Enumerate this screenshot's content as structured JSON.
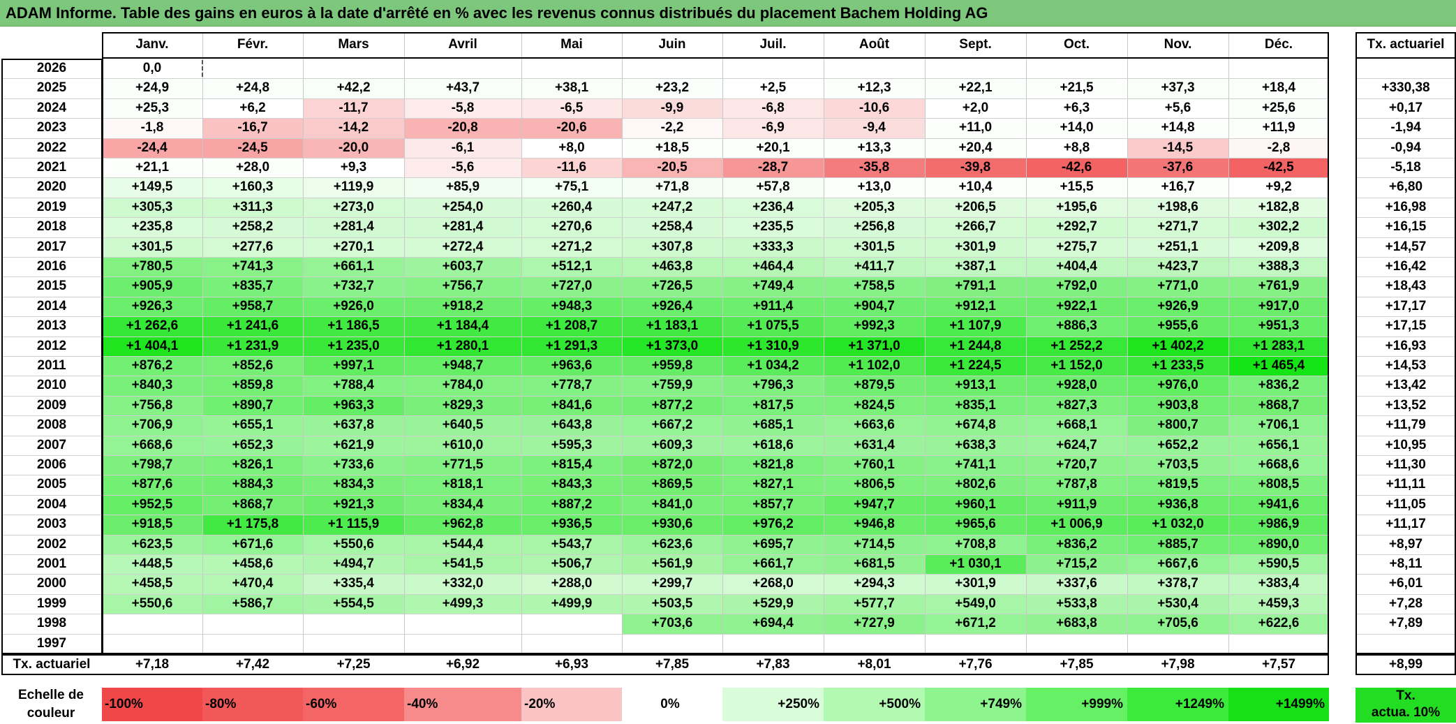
{
  "title": "ADAM Informe. Table des gains en euros à la date d'arrêté en % avec les revenus connus distribués du placement Bachem Holding AG",
  "months": [
    "Janv.",
    "Févr.",
    "Mars",
    "Avril",
    "Mai",
    "Juin",
    "Juil.",
    "Août",
    "Sept.",
    "Oct.",
    "Nov.",
    "Déc."
  ],
  "tx_header": "Tx. actuariel",
  "rows": [
    {
      "year": "2026",
      "values": [
        "0,0",
        "",
        "",
        "",
        "",
        "",
        "",
        "",
        "",
        "",
        "",
        ""
      ],
      "tx": ""
    },
    {
      "year": "2025",
      "values": [
        "+24,9",
        "+24,8",
        "+42,2",
        "+43,7",
        "+38,1",
        "+23,2",
        "+2,5",
        "+12,3",
        "+22,1",
        "+21,5",
        "+37,3",
        "+18,4"
      ],
      "tx": "+330,38"
    },
    {
      "year": "2024",
      "values": [
        "+25,3",
        "+6,2",
        "-11,7",
        "-5,8",
        "-6,5",
        "-9,9",
        "-6,8",
        "-10,6",
        "+2,0",
        "+6,3",
        "+5,6",
        "+25,6"
      ],
      "tx": "+0,17"
    },
    {
      "year": "2023",
      "values": [
        "-1,8",
        "-16,7",
        "-14,2",
        "-20,8",
        "-20,6",
        "-2,2",
        "-6,9",
        "-9,4",
        "+11,0",
        "+14,0",
        "+14,8",
        "+11,9"
      ],
      "tx": "-1,94"
    },
    {
      "year": "2022",
      "values": [
        "-24,4",
        "-24,5",
        "-20,0",
        "-6,1",
        "+8,0",
        "+18,5",
        "+20,1",
        "+13,3",
        "+20,4",
        "+8,8",
        "-14,5",
        "-2,8"
      ],
      "tx": "-0,94"
    },
    {
      "year": "2021",
      "values": [
        "+21,1",
        "+28,0",
        "+9,3",
        "-5,6",
        "-11,6",
        "-20,5",
        "-28,7",
        "-35,8",
        "-39,8",
        "-42,6",
        "-37,6",
        "-42,5"
      ],
      "tx": "-5,18"
    },
    {
      "year": "2020",
      "values": [
        "+149,5",
        "+160,3",
        "+119,9",
        "+85,9",
        "+75,1",
        "+71,8",
        "+57,8",
        "+13,0",
        "+10,4",
        "+15,5",
        "+16,7",
        "+9,2"
      ],
      "tx": "+6,80"
    },
    {
      "year": "2019",
      "values": [
        "+305,3",
        "+311,3",
        "+273,0",
        "+254,0",
        "+260,4",
        "+247,2",
        "+236,4",
        "+205,3",
        "+206,5",
        "+195,6",
        "+198,6",
        "+182,8"
      ],
      "tx": "+16,98"
    },
    {
      "year": "2018",
      "values": [
        "+235,8",
        "+258,2",
        "+281,4",
        "+281,4",
        "+270,6",
        "+258,4",
        "+235,5",
        "+256,8",
        "+266,7",
        "+292,7",
        "+271,7",
        "+302,2"
      ],
      "tx": "+16,15"
    },
    {
      "year": "2017",
      "values": [
        "+301,5",
        "+277,6",
        "+270,1",
        "+272,4",
        "+271,2",
        "+307,8",
        "+333,3",
        "+301,5",
        "+301,9",
        "+275,7",
        "+251,1",
        "+209,8"
      ],
      "tx": "+14,57"
    },
    {
      "year": "2016",
      "values": [
        "+780,5",
        "+741,3",
        "+661,1",
        "+603,7",
        "+512,1",
        "+463,8",
        "+464,4",
        "+411,7",
        "+387,1",
        "+404,4",
        "+423,7",
        "+388,3"
      ],
      "tx": "+16,42"
    },
    {
      "year": "2015",
      "values": [
        "+905,9",
        "+835,7",
        "+732,7",
        "+756,7",
        "+727,0",
        "+726,5",
        "+749,4",
        "+758,5",
        "+791,1",
        "+792,0",
        "+771,0",
        "+761,9"
      ],
      "tx": "+18,43"
    },
    {
      "year": "2014",
      "values": [
        "+926,3",
        "+958,7",
        "+926,0",
        "+918,2",
        "+948,3",
        "+926,4",
        "+911,4",
        "+904,7",
        "+912,1",
        "+922,1",
        "+926,9",
        "+917,0"
      ],
      "tx": "+17,17"
    },
    {
      "year": "2013",
      "values": [
        "+1 262,6",
        "+1 241,6",
        "+1 186,5",
        "+1 184,4",
        "+1 208,7",
        "+1 183,1",
        "+1 075,5",
        "+992,3",
        "+1 107,9",
        "+886,3",
        "+955,6",
        "+951,3"
      ],
      "tx": "+17,15"
    },
    {
      "year": "2012",
      "values": [
        "+1 404,1",
        "+1 231,9",
        "+1 235,0",
        "+1 280,1",
        "+1 291,3",
        "+1 373,0",
        "+1 310,9",
        "+1 371,0",
        "+1 244,8",
        "+1 252,2",
        "+1 402,2",
        "+1 283,1"
      ],
      "tx": "+16,93"
    },
    {
      "year": "2011",
      "values": [
        "+876,2",
        "+852,6",
        "+997,1",
        "+948,7",
        "+963,6",
        "+959,8",
        "+1 034,2",
        "+1 102,0",
        "+1 224,5",
        "+1 152,0",
        "+1 233,5",
        "+1 465,4"
      ],
      "tx": "+14,53"
    },
    {
      "year": "2010",
      "values": [
        "+840,3",
        "+859,8",
        "+788,4",
        "+784,0",
        "+778,7",
        "+759,9",
        "+796,3",
        "+879,5",
        "+913,1",
        "+928,0",
        "+976,0",
        "+836,2"
      ],
      "tx": "+13,42"
    },
    {
      "year": "2009",
      "values": [
        "+756,8",
        "+890,7",
        "+963,3",
        "+829,3",
        "+841,6",
        "+877,2",
        "+817,5",
        "+824,5",
        "+835,1",
        "+827,3",
        "+903,8",
        "+868,7"
      ],
      "tx": "+13,52"
    },
    {
      "year": "2008",
      "values": [
        "+706,9",
        "+655,1",
        "+637,8",
        "+640,5",
        "+643,8",
        "+667,2",
        "+685,1",
        "+663,6",
        "+674,8",
        "+668,1",
        "+800,7",
        "+706,1"
      ],
      "tx": "+11,79"
    },
    {
      "year": "2007",
      "values": [
        "+668,6",
        "+652,3",
        "+621,9",
        "+610,0",
        "+595,3",
        "+609,3",
        "+618,6",
        "+631,4",
        "+638,3",
        "+624,7",
        "+652,2",
        "+656,1"
      ],
      "tx": "+10,95"
    },
    {
      "year": "2006",
      "values": [
        "+798,7",
        "+826,1",
        "+733,6",
        "+771,5",
        "+815,4",
        "+872,0",
        "+821,8",
        "+760,1",
        "+741,1",
        "+720,7",
        "+703,5",
        "+668,6"
      ],
      "tx": "+11,30"
    },
    {
      "year": "2005",
      "values": [
        "+877,6",
        "+884,3",
        "+834,3",
        "+818,1",
        "+843,3",
        "+869,5",
        "+827,1",
        "+806,5",
        "+802,6",
        "+787,8",
        "+819,5",
        "+808,5"
      ],
      "tx": "+11,11"
    },
    {
      "year": "2004",
      "values": [
        "+952,5",
        "+868,7",
        "+921,3",
        "+834,4",
        "+887,2",
        "+841,0",
        "+857,7",
        "+947,7",
        "+960,1",
        "+911,9",
        "+936,8",
        "+941,6"
      ],
      "tx": "+11,05"
    },
    {
      "year": "2003",
      "values": [
        "+918,5",
        "+1 175,8",
        "+1 115,9",
        "+962,8",
        "+936,5",
        "+930,6",
        "+976,2",
        "+946,8",
        "+965,6",
        "+1 006,9",
        "+1 032,0",
        "+986,9"
      ],
      "tx": "+11,17"
    },
    {
      "year": "2002",
      "values": [
        "+623,5",
        "+671,6",
        "+550,6",
        "+544,4",
        "+543,7",
        "+623,6",
        "+695,7",
        "+714,5",
        "+708,8",
        "+836,2",
        "+885,7",
        "+890,0"
      ],
      "tx": "+8,97"
    },
    {
      "year": "2001",
      "values": [
        "+448,5",
        "+458,6",
        "+494,7",
        "+541,5",
        "+506,7",
        "+561,9",
        "+661,7",
        "+681,5",
        "+1 030,1",
        "+715,2",
        "+667,6",
        "+590,5"
      ],
      "tx": "+8,11"
    },
    {
      "year": "2000",
      "values": [
        "+458,5",
        "+470,4",
        "+335,4",
        "+332,0",
        "+288,0",
        "+299,7",
        "+268,0",
        "+294,3",
        "+301,9",
        "+337,6",
        "+378,7",
        "+383,4"
      ],
      "tx": "+6,01"
    },
    {
      "year": "1999",
      "values": [
        "+550,6",
        "+586,7",
        "+554,5",
        "+499,3",
        "+499,9",
        "+503,5",
        "+529,9",
        "+577,7",
        "+549,0",
        "+533,8",
        "+530,4",
        "+459,3"
      ],
      "tx": "+7,28"
    },
    {
      "year": "1998",
      "values": [
        "",
        "",
        "",
        "",
        "",
        "+703,6",
        "+694,4",
        "+727,9",
        "+671,2",
        "+683,8",
        "+705,6",
        "+622,6"
      ],
      "tx": "+7,89"
    },
    {
      "year": "1997",
      "values": [
        "",
        "",
        "",
        "",
        "",
        "",
        "",
        "",
        "",
        "",
        "",
        ""
      ],
      "tx": ""
    }
  ],
  "footer": {
    "label": "Tx. actuariel",
    "values": [
      "+7,18",
      "+7,42",
      "+7,25",
      "+6,92",
      "+6,93",
      "+7,85",
      "+7,83",
      "+8,01",
      "+7,76",
      "+7,85",
      "+7,98",
      "+7,57"
    ],
    "total": "+8,99"
  },
  "legend": {
    "label_line1": "Echelle de",
    "label_line2": "couleur",
    "items": [
      {
        "text": "-100%",
        "color": "#f04848"
      },
      {
        "text": "-80%",
        "color": "#f25858"
      },
      {
        "text": "-60%",
        "color": "#f46666"
      },
      {
        "text": "-40%",
        "color": "#f78a8a"
      },
      {
        "text": "-20%",
        "color": "#fbc4c4"
      },
      {
        "text": "0%",
        "color": "#ffffff"
      },
      {
        "text": "+250%",
        "color": "#d8fdd8"
      },
      {
        "text": "+500%",
        "color": "#b2f9b2"
      },
      {
        "text": "+749%",
        "color": "#8ef58e"
      },
      {
        "text": "+999%",
        "color": "#66f066"
      },
      {
        "text": "+1249%",
        "color": "#3cea3c"
      },
      {
        "text": "+1499%",
        "color": "#18e018"
      }
    ],
    "tx_line1": "Tx.",
    "tx_line2": "actua. 10%",
    "tx_color": "#22dd22"
  }
}
